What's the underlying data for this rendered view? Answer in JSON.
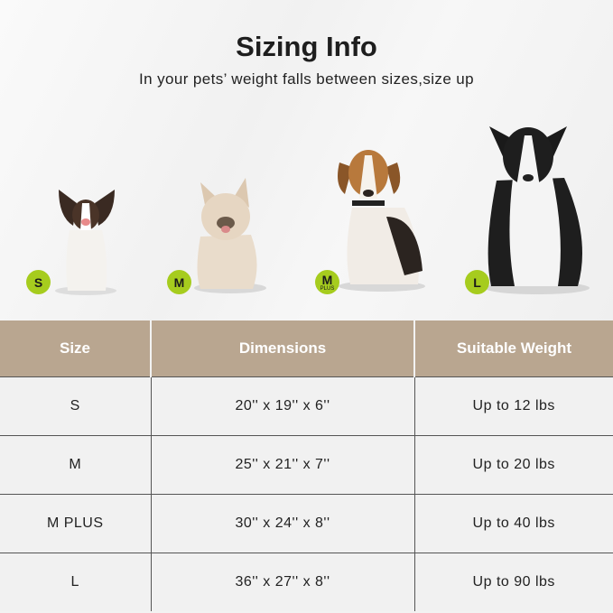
{
  "header": {
    "title": "Sizing Info",
    "subtitle": "In your pets’ weight falls between sizes,size up"
  },
  "badges": [
    {
      "label": "S"
    },
    {
      "label": "M"
    },
    {
      "label": "M",
      "sub": "PLUS"
    },
    {
      "label": "L"
    }
  ],
  "colors": {
    "header_bg": "#b9a690",
    "badge": "#a6cc1e"
  },
  "table": {
    "headers": [
      "Size",
      "Dimensions",
      "Suitable Weight"
    ],
    "rows": [
      [
        "S",
        "20'' x 19'' x 6''",
        "Up to 12 lbs"
      ],
      [
        "M",
        "25'' x 21'' x 7''",
        "Up to 20 lbs"
      ],
      [
        "M PLUS",
        "30'' x 24'' x 8''",
        "Up to 40 lbs"
      ],
      [
        "L",
        "36'' x 27'' x 8''",
        "Up to 90 lbs"
      ]
    ]
  }
}
